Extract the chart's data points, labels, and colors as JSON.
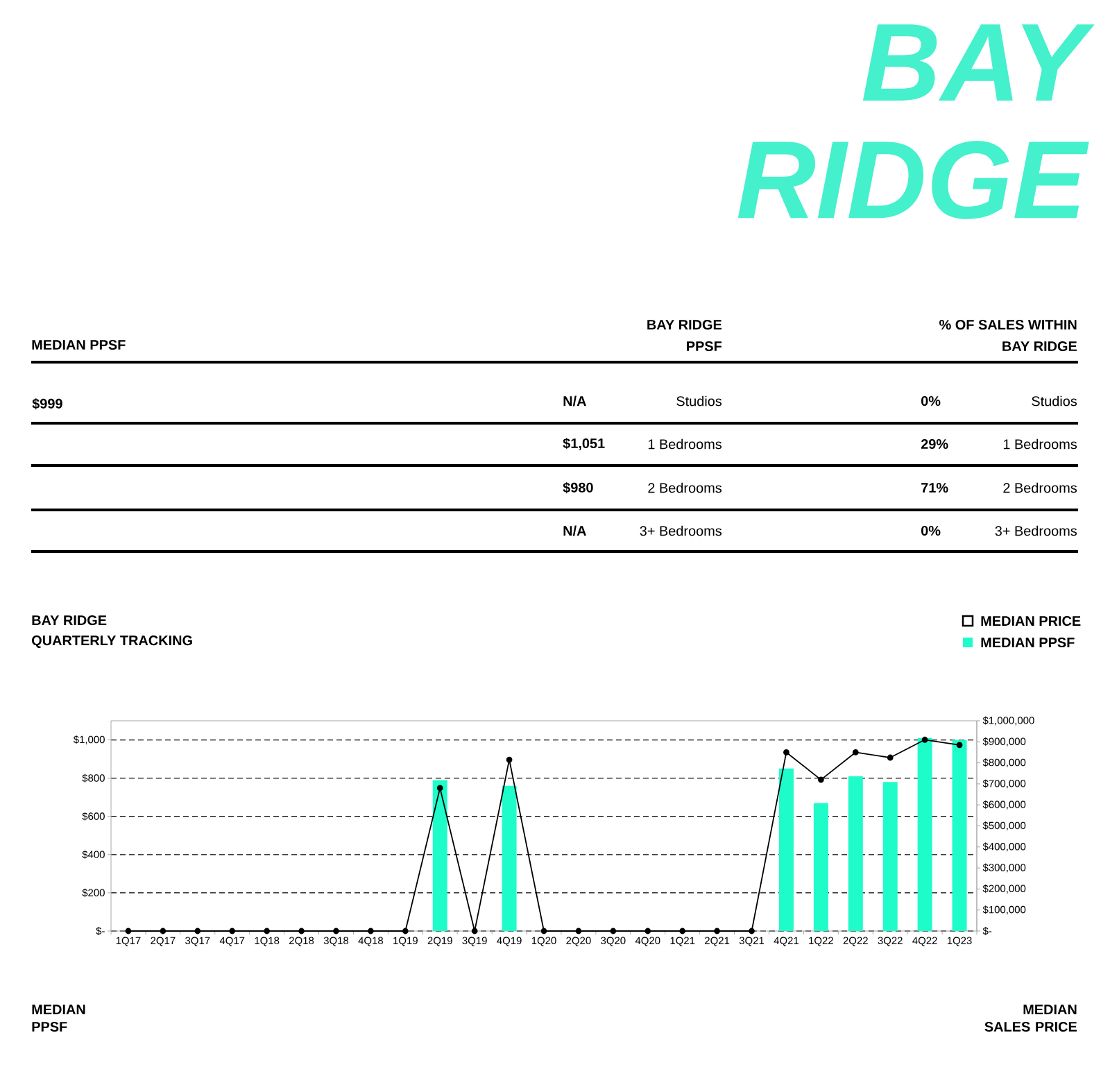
{
  "chart_data": [
    {
      "type": "other",
      "title": "BAY RIDGE",
      "color": "#45f0cc",
      "annotations": [
        "MEDIAN PPSF",
        "BAY RIDGE",
        "PPSF",
        "% OF SALES WITHIN",
        "BAY RIDGE",
        "$999",
        "N/A",
        "Studios",
        "0%",
        "Studios",
        "$1,051",
        "1 Bedrooms",
        "29%",
        "1 Bedrooms",
        "$980",
        "2 Bedrooms",
        "71%",
        "2 Bedrooms",
        "N/A",
        "3+ Bedrooms",
        "0%",
        "3+ Bedrooms"
      ]
    },
    {
      "type": "bar",
      "title": "BAY RIDGE",
      "subtitle": "QUARTERLY TRACKING",
      "ylabel": "MEDIAN PPSF",
      "y2label": "MEDIAN SALES PRICE",
      "categories": [
        "1Q17",
        "2Q17",
        "3Q17",
        "4Q17",
        "1Q18",
        "2Q18",
        "3Q18",
        "4Q18",
        "1Q19",
        "2Q19",
        "3Q19",
        "4Q19",
        "1Q20",
        "2Q20",
        "3Q20",
        "4Q20",
        "1Q21",
        "2Q21",
        "3Q21",
        "4Q21",
        "1Q22",
        "2Q22",
        "3Q22",
        "4Q22",
        "1Q23"
      ],
      "series": [
        {
          "name": "MEDIAN PRICE",
          "type": "line",
          "axis": "y2",
          "color": "#000000",
          "marker": "circle",
          "values": [
            0,
            0,
            0,
            0,
            0,
            0,
            0,
            0,
            0,
            680000,
            0,
            815000,
            0,
            0,
            0,
            0,
            0,
            0,
            0,
            850000,
            720000,
            850000,
            825000,
            910000,
            885000
          ]
        },
        {
          "name": "MEDIAN PPSF",
          "type": "bar",
          "color": "#1efcca",
          "values": [
            0,
            0,
            0,
            0,
            0,
            0,
            0,
            0,
            0,
            790,
            0,
            760,
            0,
            0,
            0,
            0,
            0,
            0,
            0,
            850,
            670,
            810,
            780,
            1010,
            1000
          ]
        }
      ],
      "ylim": [
        0,
        1100
      ],
      "yticks": [
        {
          "value": 0,
          "label": "$-"
        },
        {
          "value": 200,
          "label": "$200"
        },
        {
          "value": 400,
          "label": "$400"
        },
        {
          "value": 600,
          "label": "$600"
        },
        {
          "value": 800,
          "label": "$800"
        },
        {
          "value": 1000,
          "label": "$1,000"
        }
      ],
      "y2lim": [
        0,
        1000000
      ],
      "y2ticks": [
        {
          "value": 0,
          "label": "$-"
        },
        {
          "value": 100000,
          "label": "$100,000"
        },
        {
          "value": 200000,
          "label": "$200,000"
        },
        {
          "value": 300000,
          "label": "$300,000"
        },
        {
          "value": 400000,
          "label": "$400,000"
        },
        {
          "value": 500000,
          "label": "$500,000"
        },
        {
          "value": 600000,
          "label": "$600,000"
        },
        {
          "value": 700000,
          "label": "$700,000"
        },
        {
          "value": 800000,
          "label": "$800,000"
        },
        {
          "value": 900000,
          "label": "$900,000"
        },
        {
          "value": 1000000,
          "label": "$1,000,000"
        }
      ],
      "grid": "y",
      "legend": "top right"
    }
  ]
}
